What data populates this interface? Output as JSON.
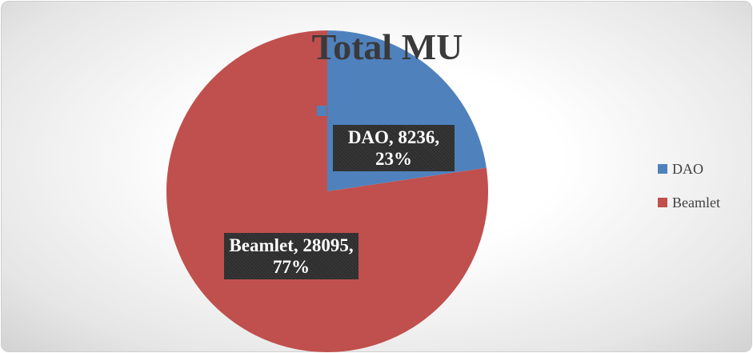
{
  "chart_data": {
    "type": "pie",
    "title": "Total MU",
    "categories": [
      "DAO",
      "Beamlet"
    ],
    "values": [
      8236,
      28095
    ],
    "value_labels": [
      "DAO, 8236, 23%",
      "Beamlet, 28095, 77%"
    ],
    "colors": [
      "#4f81bd",
      "#c0504d"
    ],
    "legend": "right"
  }
}
